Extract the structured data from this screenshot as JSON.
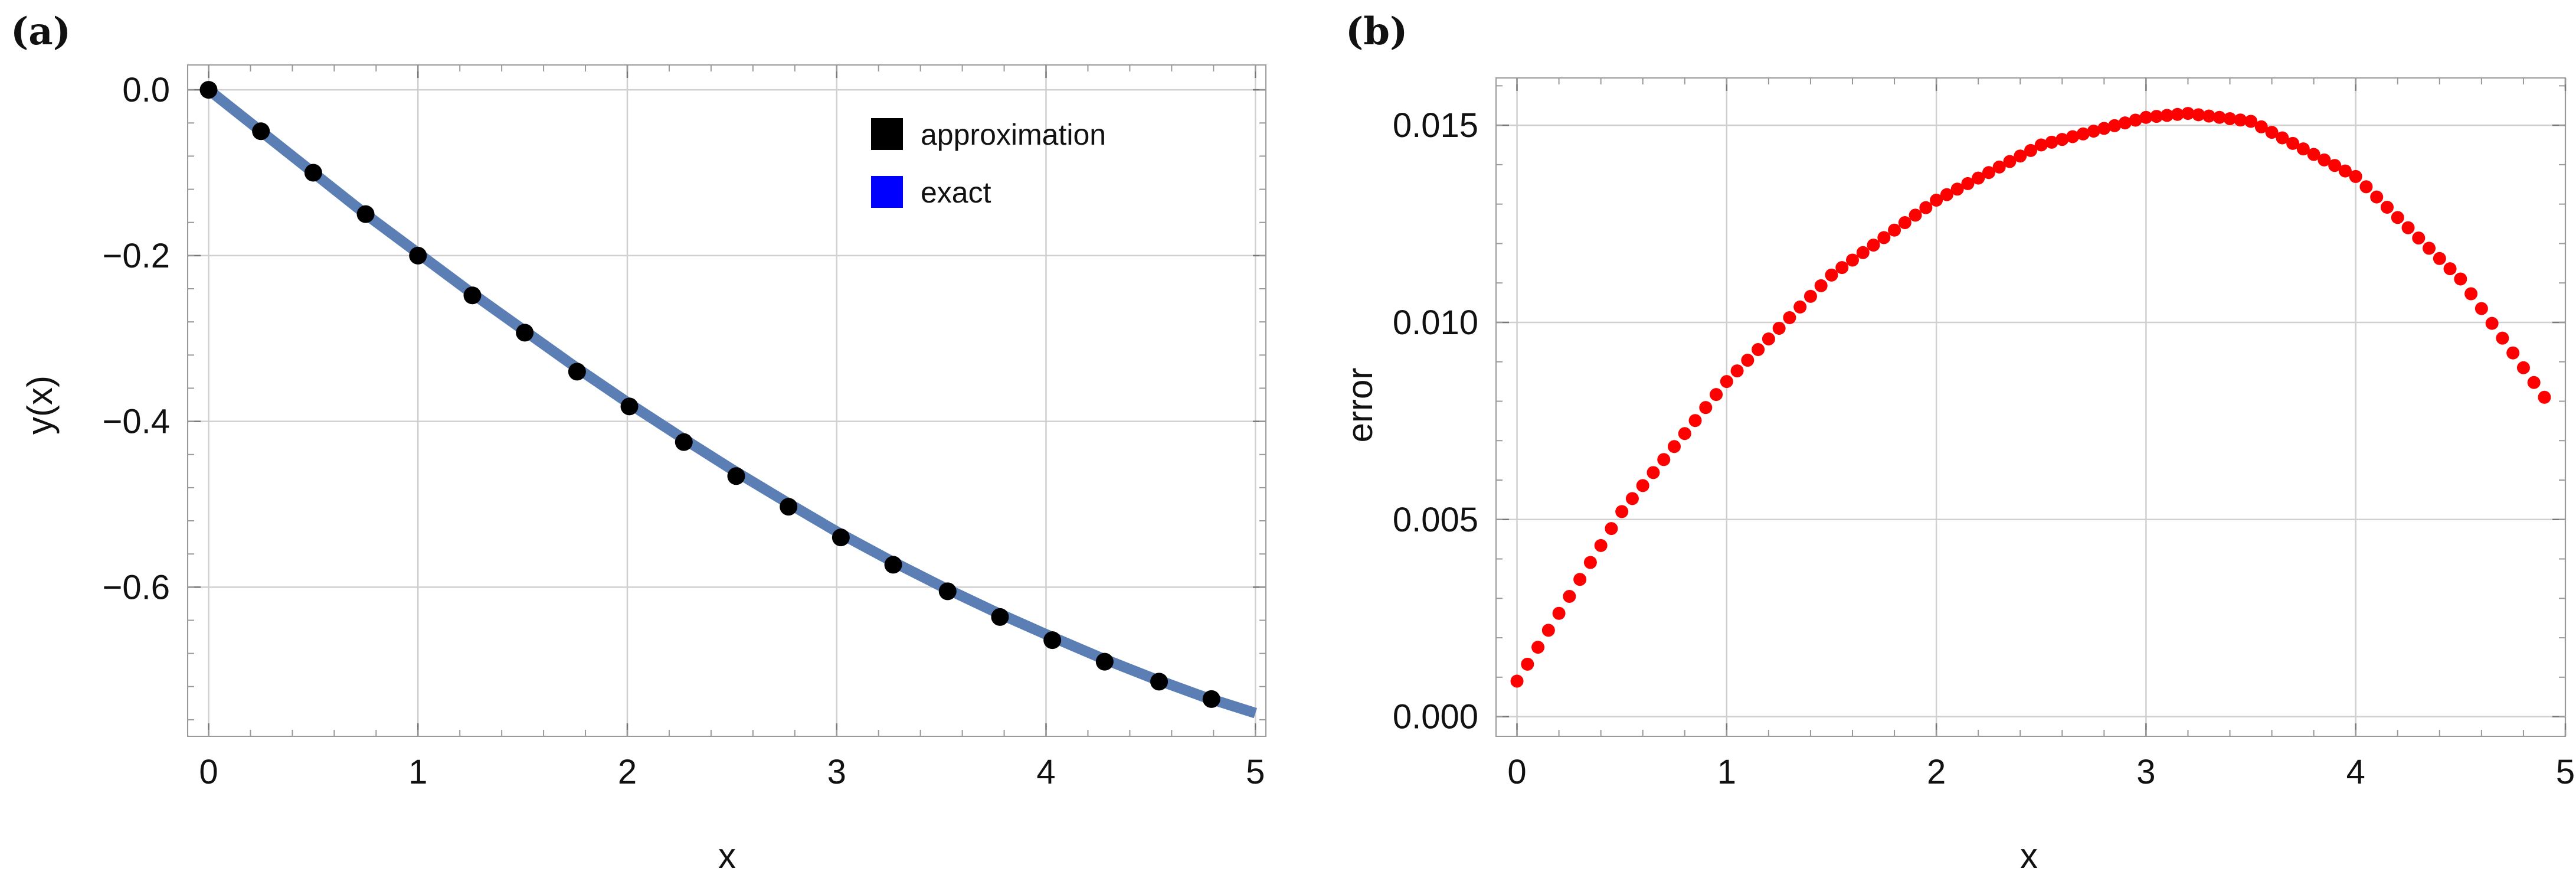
{
  "chart_data": [
    {
      "type": "scatter",
      "panel_label": "(a)",
      "xlabel": "x",
      "ylabel": "y(x)",
      "xlim": [
        -0.1,
        5.05
      ],
      "ylim": [
        -0.78,
        0.03
      ],
      "x_ticks": [
        0,
        1,
        2,
        3,
        4,
        5
      ],
      "x_tick_labels": [
        "0",
        "1",
        "2",
        "3",
        "4",
        "5"
      ],
      "y_ticks": [
        0.0,
        -0.2,
        -0.4,
        -0.6
      ],
      "y_tick_labels": [
        "0.0",
        "−0.2",
        "−0.4",
        "−0.6"
      ],
      "grid": true,
      "legend_position": "top-right",
      "legend": [
        {
          "label": "approximation",
          "color": "#000000"
        },
        {
          "label": "exact",
          "color": "#0000ff"
        }
      ],
      "series": [
        {
          "name": "exact",
          "kind": "line",
          "color": "#5b7fb5",
          "x": [
            0,
            0.25,
            0.5,
            0.75,
            1,
            1.25,
            1.5,
            1.75,
            2,
            2.25,
            2.5,
            2.75,
            3,
            3.25,
            3.5,
            3.75,
            4,
            4.25,
            4.5,
            4.75,
            5
          ],
          "y": [
            0,
            -0.05,
            -0.1,
            -0.15,
            -0.197,
            -0.244,
            -0.289,
            -0.334,
            -0.377,
            -0.418,
            -0.458,
            -0.496,
            -0.533,
            -0.567,
            -0.599,
            -0.629,
            -0.657,
            -0.684,
            -0.709,
            -0.732,
            -0.752
          ]
        },
        {
          "name": "approximation",
          "kind": "points",
          "color": "#000000",
          "x": [
            0,
            0.25,
            0.5,
            0.75,
            1,
            1.26,
            1.51,
            1.76,
            2.01,
            2.27,
            2.52,
            2.77,
            3.02,
            3.27,
            3.53,
            3.78,
            4.03,
            4.28,
            4.54,
            4.79
          ],
          "y": [
            0,
            -0.05,
            -0.1,
            -0.15,
            -0.2,
            -0.248,
            -0.293,
            -0.34,
            -0.382,
            -0.425,
            -0.466,
            -0.503,
            -0.54,
            -0.573,
            -0.605,
            -0.636,
            -0.664,
            -0.69,
            -0.714,
            -0.735
          ]
        }
      ]
    },
    {
      "type": "scatter",
      "panel_label": "(b)",
      "xlabel": "x",
      "ylabel": "error",
      "xlim": [
        -0.1,
        5.0
      ],
      "ylim": [
        -0.0005,
        0.0162
      ],
      "x_ticks": [
        0,
        1,
        2,
        3,
        4,
        5
      ],
      "x_tick_labels": [
        "0",
        "1",
        "2",
        "3",
        "4",
        "5"
      ],
      "y_ticks": [
        0.0,
        0.005,
        0.01,
        0.015
      ],
      "y_tick_labels": [
        "0.000",
        "0.005",
        "0.010",
        "0.015"
      ],
      "grid": true,
      "series": [
        {
          "name": "error",
          "kind": "points",
          "color": "#ff0000",
          "x_start": 0,
          "x_step": 0.05,
          "count": 99,
          "model": {
            "anchor_x": [
              0,
              0.5,
              1.0,
              1.5,
              2.0,
              2.5,
              3.0,
              3.2,
              3.5,
              4.0,
              4.5,
              4.9
            ],
            "anchor_y": [
              0.0009,
              0.0052,
              0.0085,
              0.0112,
              0.0131,
              0.0145,
              0.0152,
              0.0153,
              0.0151,
              0.0137,
              0.0111,
              0.0081
            ]
          }
        }
      ]
    }
  ]
}
